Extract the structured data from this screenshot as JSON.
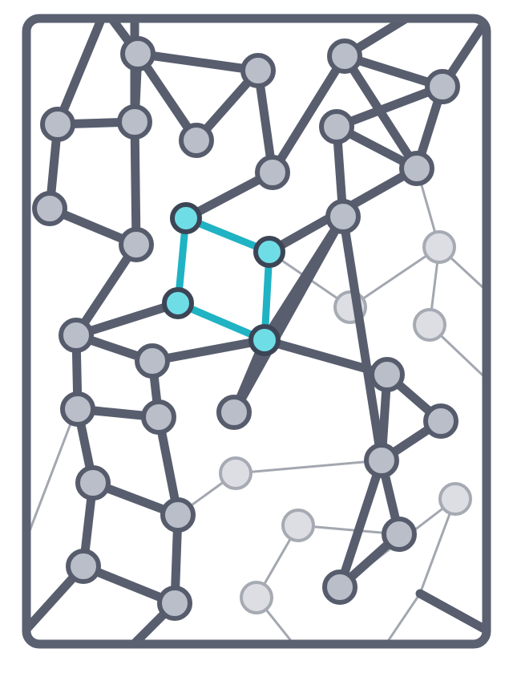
{
  "diagram": {
    "kind": "network-graph",
    "colors": {
      "frame": "#5b6171",
      "edge_dark": "#585e6e",
      "node_dark_fill": "#b9bec9",
      "node_dark_stroke": "#565c6c",
      "edge_light": "#a3a7b0",
      "node_light_fill": "#dcdee3",
      "node_light_stroke": "#a6aab3",
      "highlight_edge": "#1fb3c4",
      "highlight_fill": "#6fdde6",
      "highlight_stroke": "#3c4556",
      "background": "#ffffff"
    },
    "nodes": [
      {
        "id": "n1",
        "group": "dark"
      },
      {
        "id": "n2",
        "group": "dark"
      },
      {
        "id": "n3",
        "group": "dark"
      },
      {
        "id": "n4",
        "group": "dark"
      },
      {
        "id": "n5",
        "group": "dark"
      },
      {
        "id": "n6",
        "group": "dark"
      },
      {
        "id": "n7",
        "group": "dark"
      },
      {
        "id": "n8",
        "group": "dark"
      },
      {
        "id": "n9",
        "group": "dark"
      },
      {
        "id": "n10",
        "group": "dark"
      },
      {
        "id": "n11",
        "group": "dark"
      },
      {
        "id": "n12",
        "group": "dark"
      },
      {
        "id": "h1",
        "group": "highlight"
      },
      {
        "id": "h2",
        "group": "highlight"
      },
      {
        "id": "h3",
        "group": "highlight"
      },
      {
        "id": "h4",
        "group": "highlight"
      },
      {
        "id": "n13",
        "group": "dark"
      },
      {
        "id": "n14",
        "group": "dark"
      },
      {
        "id": "n15",
        "group": "dark"
      },
      {
        "id": "n16",
        "group": "dark"
      },
      {
        "id": "n17",
        "group": "dark"
      },
      {
        "id": "n18",
        "group": "dark"
      },
      {
        "id": "n19",
        "group": "dark"
      },
      {
        "id": "n20",
        "group": "dark"
      },
      {
        "id": "n21",
        "group": "dark"
      },
      {
        "id": "n22",
        "group": "dark"
      },
      {
        "id": "n23",
        "group": "dark"
      },
      {
        "id": "n24",
        "group": "dark"
      },
      {
        "id": "n25",
        "group": "dark"
      },
      {
        "id": "n26",
        "group": "dark"
      },
      {
        "id": "n27",
        "group": "dark"
      },
      {
        "id": "l1",
        "group": "light"
      },
      {
        "id": "l2",
        "group": "light"
      },
      {
        "id": "l3",
        "group": "light"
      },
      {
        "id": "l4",
        "group": "light"
      },
      {
        "id": "l5",
        "group": "light"
      },
      {
        "id": "l6",
        "group": "light"
      },
      {
        "id": "l7",
        "group": "light"
      }
    ],
    "edges": [
      {
        "from": "n1",
        "to": "n2",
        "style": "dark"
      },
      {
        "from": "n1",
        "to": "n3",
        "style": "dark"
      },
      {
        "from": "n1",
        "to": "n5",
        "style": "dark"
      },
      {
        "from": "n2",
        "to": "n3",
        "style": "dark"
      },
      {
        "from": "n2",
        "to": "n7",
        "style": "dark"
      },
      {
        "from": "n4",
        "to": "n5",
        "style": "dark"
      },
      {
        "from": "n4",
        "to": "n6",
        "style": "dark"
      },
      {
        "from": "n5",
        "to": "n8",
        "style": "dark"
      },
      {
        "from": "n6",
        "to": "n8",
        "style": "dark"
      },
      {
        "from": "n8",
        "to": "n13",
        "style": "dark"
      },
      {
        "from": "n7",
        "to": "n9",
        "style": "dark"
      },
      {
        "from": "n7",
        "to": "h1",
        "style": "dark"
      },
      {
        "from": "n9",
        "to": "n10",
        "style": "dark"
      },
      {
        "from": "n9",
        "to": "n12",
        "style": "dark"
      },
      {
        "from": "n10",
        "to": "n11",
        "style": "dark"
      },
      {
        "from": "n10",
        "to": "n12",
        "style": "dark"
      },
      {
        "from": "n11",
        "to": "n12",
        "style": "dark"
      },
      {
        "from": "n11",
        "to": "n22",
        "style": "dark"
      },
      {
        "from": "n12",
        "to": "h2",
        "style": "dark"
      },
      {
        "from": "h3",
        "to": "n13",
        "style": "dark"
      },
      {
        "from": "n13",
        "to": "n14",
        "style": "dark"
      },
      {
        "from": "n13",
        "to": "n15",
        "style": "dark"
      },
      {
        "from": "n14",
        "to": "h4",
        "style": "dark"
      },
      {
        "from": "n14",
        "to": "n16",
        "style": "dark"
      },
      {
        "from": "n15",
        "to": "n16",
        "style": "dark"
      },
      {
        "from": "n15",
        "to": "n17",
        "style": "dark"
      },
      {
        "from": "n16",
        "to": "n18",
        "style": "dark"
      },
      {
        "from": "n17",
        "to": "n18",
        "style": "dark"
      },
      {
        "from": "n17",
        "to": "n19",
        "style": "dark"
      },
      {
        "from": "n18",
        "to": "n20",
        "style": "dark"
      },
      {
        "from": "n19",
        "to": "n20",
        "style": "dark"
      },
      {
        "from": "h4",
        "to": "n21",
        "style": "dark"
      },
      {
        "from": "h4",
        "to": "n22",
        "style": "dark"
      },
      {
        "from": "h4",
        "to": "n23",
        "style": "dark"
      },
      {
        "from": "n21",
        "to": "n22",
        "style": "dark"
      },
      {
        "from": "n22",
        "to": "n25",
        "style": "dark"
      },
      {
        "from": "n23",
        "to": "n24",
        "style": "dark"
      },
      {
        "from": "n23",
        "to": "n25",
        "style": "dark"
      },
      {
        "from": "n24",
        "to": "n25",
        "style": "dark"
      },
      {
        "from": "n25",
        "to": "n26",
        "style": "dark"
      },
      {
        "from": "n25",
        "to": "n27",
        "style": "dark"
      },
      {
        "from": "n26",
        "to": "n27",
        "style": "dark"
      },
      {
        "from": "h1",
        "to": "h2",
        "style": "highlight"
      },
      {
        "from": "h1",
        "to": "h3",
        "style": "highlight"
      },
      {
        "from": "h2",
        "to": "h4",
        "style": "highlight"
      },
      {
        "from": "h3",
        "to": "h4",
        "style": "highlight"
      },
      {
        "from": "n12",
        "to": "l1",
        "style": "light"
      },
      {
        "from": "h2",
        "to": "l2",
        "style": "light"
      },
      {
        "from": "l1",
        "to": "l2",
        "style": "light"
      },
      {
        "from": "l1",
        "to": "l3",
        "style": "light"
      },
      {
        "from": "n18",
        "to": "l4",
        "style": "light"
      },
      {
        "from": "l4",
        "to": "n25",
        "style": "light"
      },
      {
        "from": "l5",
        "to": "n26",
        "style": "light"
      },
      {
        "from": "l5",
        "to": "l6",
        "style": "light"
      },
      {
        "from": "l7",
        "to": "n27",
        "style": "light"
      }
    ]
  }
}
